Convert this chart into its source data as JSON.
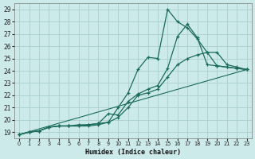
{
  "xlabel": "Humidex (Indice chaleur)",
  "xlim": [
    -0.5,
    23.5
  ],
  "ylim": [
    18.5,
    29.5
  ],
  "xticks": [
    0,
    1,
    2,
    3,
    4,
    5,
    6,
    7,
    8,
    9,
    10,
    11,
    12,
    13,
    14,
    15,
    16,
    17,
    18,
    19,
    20,
    21,
    22,
    23
  ],
  "yticks": [
    19,
    20,
    21,
    22,
    23,
    24,
    25,
    26,
    27,
    28,
    29
  ],
  "bg_color": "#cdeaea",
  "grid_color": "#aacfcf",
  "line_color": "#1a6b5a",
  "lines": [
    {
      "x": [
        0,
        1,
        2,
        3,
        4,
        5,
        6,
        7,
        8,
        9,
        10,
        11,
        12,
        13,
        14,
        15,
        16,
        17,
        18,
        19,
        20,
        21,
        22,
        23
      ],
      "y": [
        18.8,
        19.0,
        19.1,
        19.4,
        19.5,
        19.5,
        19.5,
        19.6,
        19.7,
        19.8,
        21.0,
        22.2,
        24.1,
        25.1,
        25.0,
        29.0,
        28.0,
        27.5,
        26.6,
        25.5,
        24.4,
        24.3,
        24.2,
        24.1
      ],
      "marker": true
    },
    {
      "x": [
        0,
        1,
        2,
        3,
        4,
        5,
        6,
        7,
        8,
        9,
        10,
        11,
        12,
        13,
        14,
        15,
        16,
        17,
        18,
        19,
        20,
        21,
        22,
        23
      ],
      "y": [
        18.8,
        19.0,
        19.1,
        19.4,
        19.5,
        19.5,
        19.5,
        19.5,
        19.6,
        19.8,
        20.2,
        21.0,
        22.0,
        22.2,
        22.5,
        23.5,
        24.5,
        25.0,
        25.3,
        25.5,
        25.5,
        24.5,
        24.3,
        24.1
      ],
      "marker": true
    },
    {
      "x": [
        0,
        1,
        2,
        3,
        4,
        5,
        6,
        7,
        8,
        9,
        10,
        11,
        12,
        13,
        14,
        15,
        16,
        17,
        18,
        19,
        20,
        21,
        22,
        23
      ],
      "y": [
        18.8,
        19.0,
        19.1,
        19.4,
        19.5,
        19.5,
        19.6,
        19.6,
        19.7,
        20.5,
        20.4,
        21.5,
        22.1,
        22.5,
        22.8,
        24.2,
        26.8,
        27.8,
        26.7,
        24.5,
        24.4,
        24.3,
        24.2,
        24.1
      ],
      "marker": true
    },
    {
      "x": [
        0,
        23
      ],
      "y": [
        18.8,
        24.1
      ],
      "marker": false
    }
  ]
}
